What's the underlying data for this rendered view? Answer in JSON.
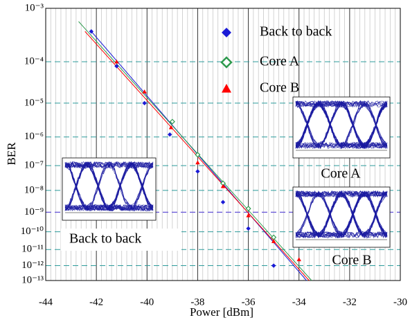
{
  "chart_data": {
    "type": "scatter",
    "yscale": "log-neg-log",
    "x_label": "Power [dBm]",
    "y_label": "BER",
    "xlim": [
      -44,
      -30
    ],
    "xticks": [
      -44,
      -42,
      -40,
      -38,
      -36,
      -34,
      -32,
      -30
    ],
    "ylim": [
      1e-13,
      0.001
    ],
    "yticks": [
      {
        "value": 0.001,
        "label": "10⁻³"
      },
      {
        "value": 0.0001,
        "label": "10⁻⁴"
      },
      {
        "value": 1e-05,
        "label": "10⁻⁵"
      },
      {
        "value": 1e-06,
        "label": "10⁻⁶"
      },
      {
        "value": 1e-07,
        "label": "10⁻⁷"
      },
      {
        "value": 1e-08,
        "label": "10⁻⁸"
      },
      {
        "value": 1e-09,
        "label": "10⁻⁹"
      },
      {
        "value": 1e-10,
        "label": "10⁻¹⁰"
      },
      {
        "value": 1e-11,
        "label": "10⁻¹¹"
      },
      {
        "value": 1e-12,
        "label": "10⁻¹²"
      },
      {
        "value": 1e-13,
        "label": "10⁻¹³"
      }
    ],
    "grid": true,
    "legend": "top-center",
    "series": [
      {
        "name": "Back to back",
        "color": "#1a1ad6",
        "marker": "diamond",
        "x": [
          -42.2,
          -41.2,
          -40.1,
          -39.1,
          -38,
          -37,
          -36,
          -35
        ],
        "values": [
          0.0004,
          8e-05,
          1e-05,
          1.2e-06,
          6e-08,
          3e-09,
          1.5e-10,
          1e-12
        ]
      },
      {
        "name": "Core A",
        "color": "#2e9a4e",
        "marker": "diamond-open",
        "x": [
          -39,
          -38,
          -37,
          -36,
          -35
        ],
        "values": [
          3e-06,
          2.5e-07,
          2e-08,
          1.5e-09,
          5e-11
        ]
      },
      {
        "name": "Core B",
        "color": "#ff0000",
        "marker": "triangle",
        "x": [
          -41.2,
          -40.1,
          -39.05,
          -38,
          -37,
          -36,
          -35,
          -34
        ],
        "values": [
          0.0001,
          2e-05,
          2e-06,
          1.3e-07,
          1.5e-08,
          7e-10,
          3e-11,
          2.5e-12
        ]
      }
    ],
    "fits": [
      {
        "color": "#1a1ad6",
        "x": [
          -42.2,
          -33.7
        ],
        "values": [
          0.0004,
          1e-13
        ]
      },
      {
        "color": "#2e9a4e",
        "x": [
          -42.7,
          -33.5
        ],
        "values": [
          0.0006,
          1e-13
        ]
      },
      {
        "color": "#ff0000",
        "x": [
          -42.45,
          -33.6
        ],
        "values": [
          0.0004,
          1e-13
        ]
      }
    ],
    "reference_line": {
      "value": 1e-09,
      "color": "#6a5ad8"
    },
    "annotations": [
      "Back to back",
      "Core A",
      "Core B"
    ]
  }
}
